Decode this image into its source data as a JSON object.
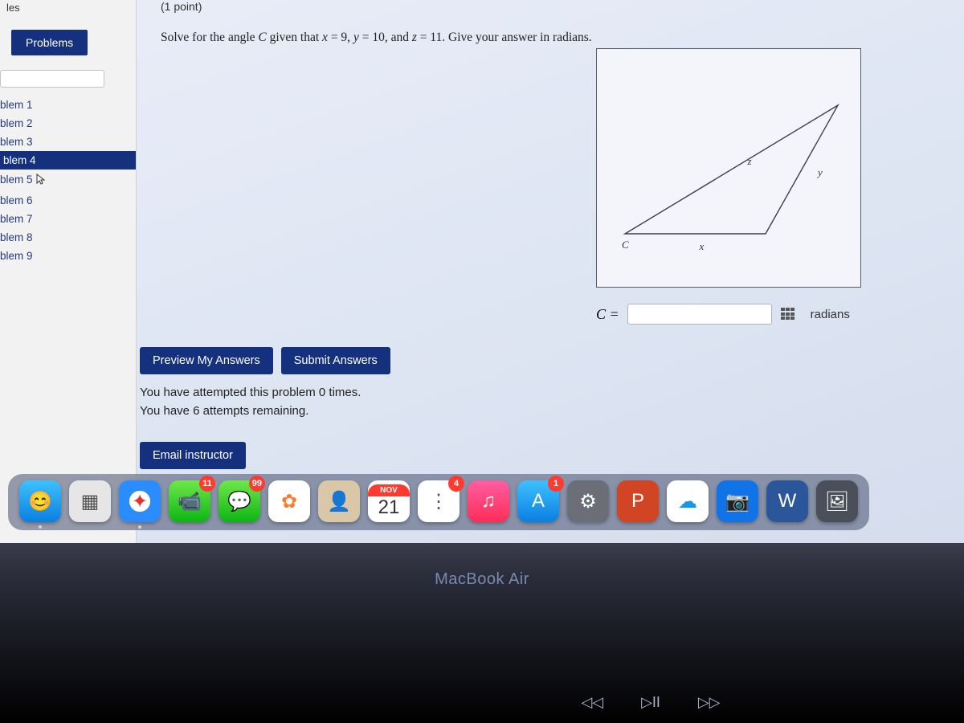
{
  "sidebar": {
    "top_label": "les",
    "problems_button": "Problems",
    "items": [
      {
        "label": "blem 1",
        "active": false
      },
      {
        "label": "blem 2",
        "active": false
      },
      {
        "label": "blem 3",
        "active": false
      },
      {
        "label": "blem 4",
        "active": true
      },
      {
        "label": "blem 5",
        "active": false,
        "cursor": true
      },
      {
        "label": "blem 6",
        "active": false
      },
      {
        "label": "blem 7",
        "active": false
      },
      {
        "label": "blem 8",
        "active": false
      },
      {
        "label": "blem 9",
        "active": false
      }
    ]
  },
  "main": {
    "point_label": "(1 point)",
    "question_prefix": "Solve for the angle ",
    "var_C": "C",
    "given_text": " given that ",
    "var_x": "x",
    "eq1": " = 9, ",
    "var_y": "y",
    "eq2": " = 10, and ",
    "var_z": "z",
    "eq3": " = 11. Give your answer in radians.",
    "answer_label": "C =",
    "radians_label": "radians",
    "preview_btn": "Preview My Answers",
    "submit_btn": "Submit Answers",
    "attempt_line1": "You have attempted this problem 0 times.",
    "attempt_line2": "You have 6 attempts remaining.",
    "email_btn": "Email instructor"
  },
  "diagram": {
    "labels": {
      "C": "C",
      "x": "x",
      "y": "y",
      "z": "z"
    },
    "vertices": {
      "C": [
        35,
        230
      ],
      "R": [
        300,
        70
      ],
      "B": [
        210,
        230
      ]
    },
    "stroke": "#3d4048",
    "stroke_width": 1.4
  },
  "dock": {
    "items": [
      {
        "name": "finder-icon",
        "bg": "linear-gradient(180deg,#3fc1ff,#0a7fe0)",
        "glyph": "😊",
        "running": true
      },
      {
        "name": "launchpad-icon",
        "bg": "#e6e6e6",
        "glyph": "▦",
        "color": "#555"
      },
      {
        "name": "safari-icon",
        "bg": "radial-gradient(circle,#fff 35%,#2a8cff 36%)",
        "glyph": "✦",
        "color": "#d33",
        "running": true
      },
      {
        "name": "facetime-icon",
        "bg": "linear-gradient(180deg,#6fe84a,#0db514)",
        "glyph": "📹",
        "badge": "11"
      },
      {
        "name": "messages-icon",
        "bg": "linear-gradient(180deg,#6fe84a,#0db514)",
        "glyph": "💬",
        "badge": "99"
      },
      {
        "name": "photos-icon",
        "bg": "#fff",
        "glyph": "✿",
        "color": "#ff7a2a"
      },
      {
        "name": "contacts-icon",
        "bg": "#d9c7a8",
        "glyph": "👤",
        "color": "#7a5c3a"
      },
      {
        "name": "calendar-icon",
        "calendar": true,
        "month": "NOV",
        "day": "21"
      },
      {
        "name": "reminders-icon",
        "bg": "#fff",
        "glyph": "⋮",
        "color": "#555",
        "badge": "4"
      },
      {
        "name": "music-icon",
        "bg": "linear-gradient(180deg,#ff5ea3,#ff2d55)",
        "glyph": "♫"
      },
      {
        "name": "appstore-icon",
        "bg": "linear-gradient(180deg,#3fc1ff,#0a7fe0)",
        "glyph": "A",
        "badge": "1"
      },
      {
        "name": "settings-icon",
        "bg": "#6b6e76",
        "glyph": "⚙"
      },
      {
        "name": "powerpoint-icon",
        "bg": "#d14424",
        "glyph": "P"
      },
      {
        "name": "onedrive-icon",
        "bg": "#fff",
        "glyph": "☁",
        "color": "#1597e5"
      },
      {
        "name": "camera-icon",
        "bg": "#1074e8",
        "glyph": "📷"
      },
      {
        "name": "word-icon",
        "bg": "#2b579a",
        "glyph": "W"
      },
      {
        "name": "preview-icon",
        "bg": "#4a4f5a",
        "glyph": "🖼"
      }
    ]
  },
  "laptop_label": "MacBook Air",
  "media": {
    "prev": "◁◁",
    "play": "▷II",
    "next": "▷▷"
  }
}
